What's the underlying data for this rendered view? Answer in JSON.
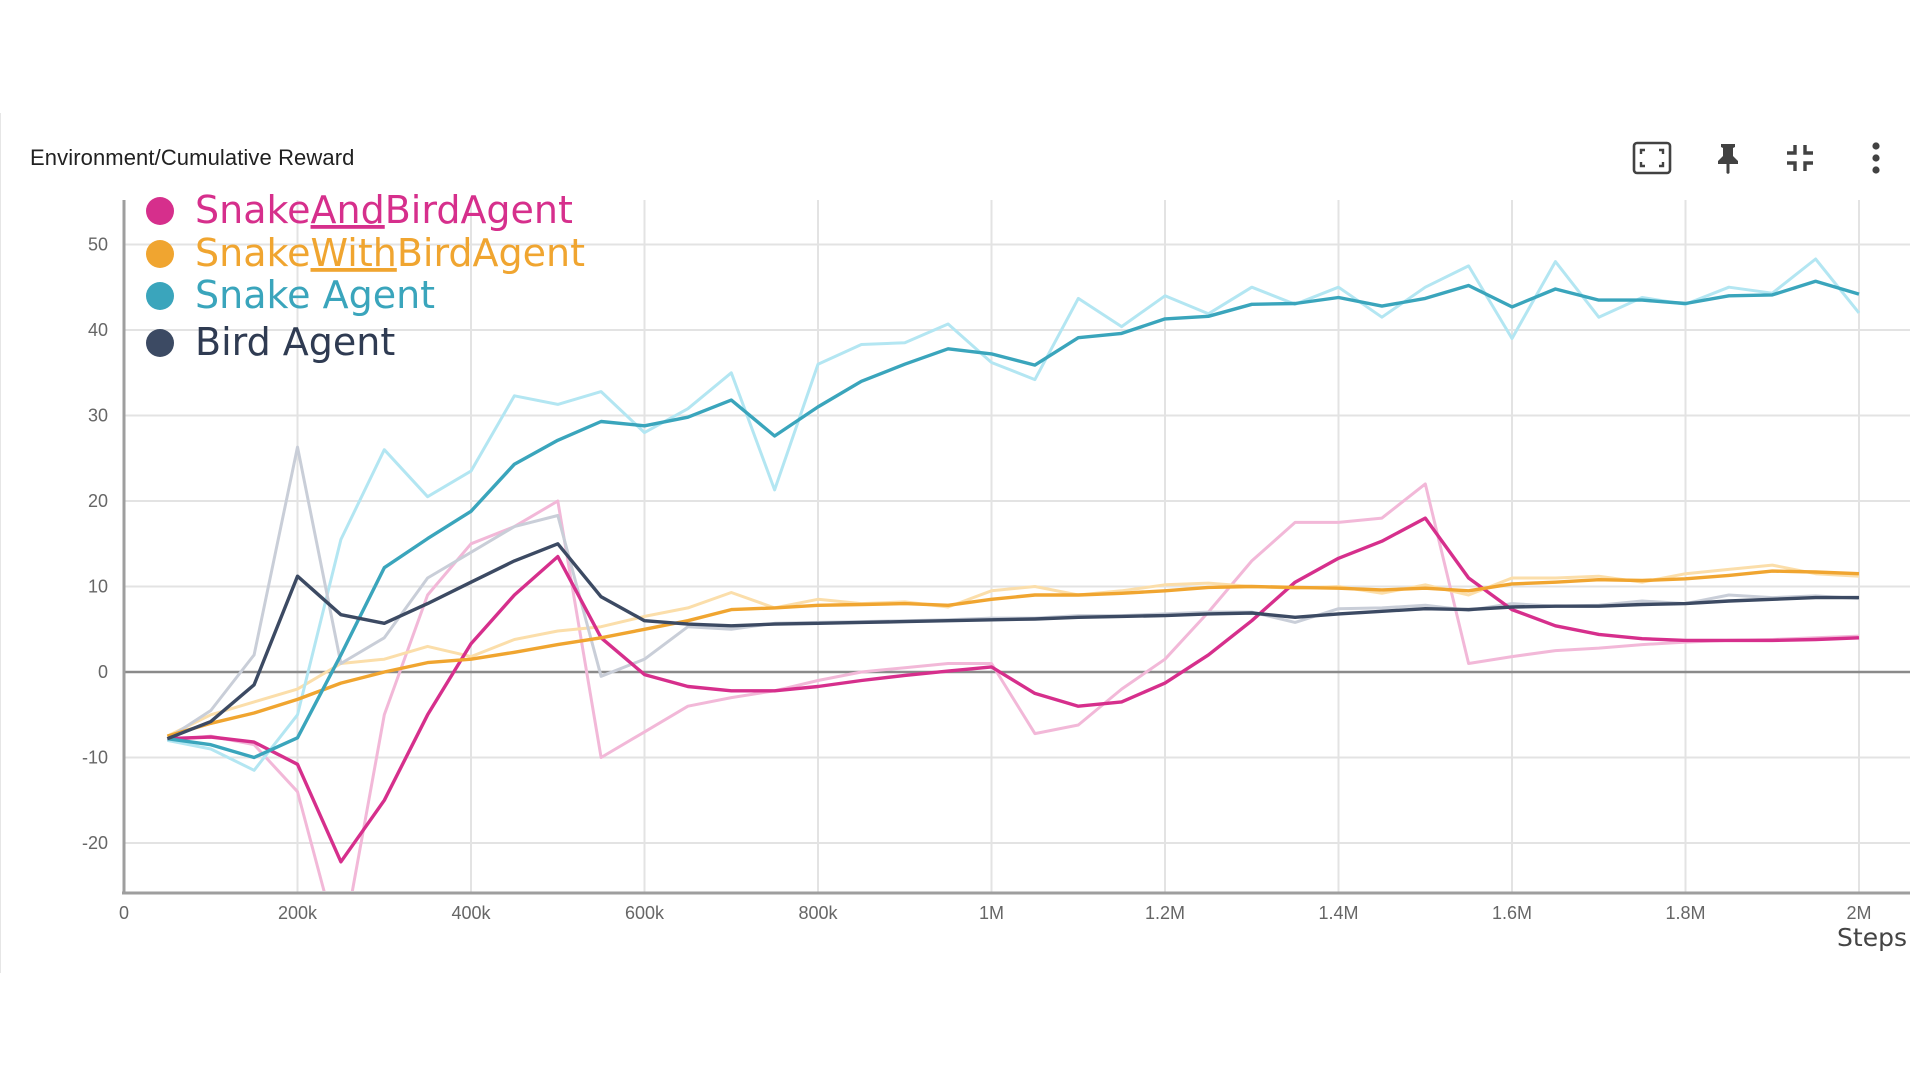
{
  "card": {
    "title": "Environment/Cumulative Reward"
  },
  "toolbar": {
    "fit_icon": "fit-to-frame-icon",
    "pin_icon": "pin-icon",
    "collapse_icon": "collapse-icon",
    "menu_icon": "more-vert-icon"
  },
  "chart_data": {
    "type": "line",
    "title": "Environment/Cumulative Reward",
    "xlabel": "Steps",
    "ylabel": "",
    "xlim": [
      0,
      2000000
    ],
    "ylim": [
      -26,
      55
    ],
    "x_ticks": [
      0,
      200000,
      400000,
      600000,
      800000,
      1000000,
      1200000,
      1400000,
      1600000,
      1800000,
      2000000
    ],
    "x_tick_labels": [
      "0",
      "200k",
      "400k",
      "600k",
      "800k",
      "1M",
      "1.2M",
      "1.4M",
      "1.6M",
      "1.8M",
      "2M"
    ],
    "y_ticks": [
      -20,
      -10,
      0,
      10,
      20,
      30,
      40,
      50
    ],
    "y_tick_labels": [
      "-20",
      "-10",
      "0",
      "10",
      "20",
      "30",
      "40",
      "50"
    ],
    "grid": true,
    "legend_position": "top-left",
    "x": [
      50000,
      100000,
      150000,
      200000,
      250000,
      300000,
      350000,
      400000,
      450000,
      500000,
      550000,
      600000,
      650000,
      700000,
      750000,
      800000,
      850000,
      900000,
      950000,
      1000000,
      1050000,
      1100000,
      1150000,
      1200000,
      1250000,
      1300000,
      1350000,
      1400000,
      1450000,
      1500000,
      1550000,
      1600000,
      1650000,
      1700000,
      1750000,
      1800000,
      1850000,
      1900000,
      1950000,
      2000000
    ],
    "series": [
      {
        "name": "SnakeAndBirdAgent",
        "underline": "And",
        "color": "#d62f8c",
        "raw_color": "#f2b8d8",
        "smoothed": [
          -7.8,
          -7.6,
          -8.2,
          -10.8,
          -22.2,
          -15.0,
          -5.0,
          3.3,
          9.0,
          13.5,
          4.0,
          -0.3,
          -1.7,
          -2.2,
          -2.2,
          -1.7,
          -1.0,
          -0.4,
          0.1,
          0.6,
          -2.5,
          -4.0,
          -3.5,
          -1.3,
          2.0,
          6.0,
          10.5,
          13.3,
          15.3,
          18.0,
          11.0,
          7.3,
          5.4,
          4.4,
          3.9,
          3.7,
          3.7,
          3.7,
          3.8,
          4.0
        ],
        "raw": [
          -8.0,
          -7.5,
          -8.5,
          -14.0,
          -33.0,
          -5.0,
          9.0,
          15.0,
          17.0,
          20.0,
          -10.0,
          -7.0,
          -4.0,
          -3.0,
          -2.2,
          -1.0,
          0.0,
          0.5,
          1.0,
          1.0,
          -7.2,
          -6.2,
          -2.0,
          1.5,
          7.0,
          13.0,
          17.5,
          17.5,
          18.0,
          22.0,
          1.0,
          1.8,
          2.5,
          2.8,
          3.2,
          3.5,
          3.7,
          3.8,
          4.0,
          4.2
        ]
      },
      {
        "name": "SnakeWithBirdAgent",
        "underline": "With",
        "color": "#f0a530",
        "raw_color": "#fbdeaa",
        "smoothed": [
          -7.5,
          -6.0,
          -4.8,
          -3.2,
          -1.3,
          0.0,
          1.1,
          1.5,
          2.3,
          3.2,
          4.0,
          5.0,
          6.0,
          7.3,
          7.5,
          7.8,
          7.9,
          8.0,
          7.8,
          8.5,
          9.0,
          9.0,
          9.2,
          9.5,
          9.9,
          10.0,
          9.9,
          9.8,
          9.6,
          9.8,
          9.5,
          10.3,
          10.5,
          10.8,
          10.7,
          10.9,
          11.3,
          11.8,
          11.7,
          11.5
        ],
        "raw": [
          -7.5,
          -5.0,
          -3.5,
          -2.0,
          1.0,
          1.5,
          3.0,
          1.8,
          3.8,
          4.8,
          5.3,
          6.5,
          7.5,
          9.3,
          7.5,
          8.5,
          8.0,
          8.2,
          7.6,
          9.5,
          10.0,
          9.0,
          9.5,
          10.2,
          10.4,
          10.0,
          9.8,
          10.0,
          9.2,
          10.2,
          9.0,
          11.0,
          11.0,
          11.2,
          10.5,
          11.5,
          12.0,
          12.5,
          11.5,
          11.2
        ]
      },
      {
        "name": "Snake Agent",
        "underline": "",
        "color": "#3aa5bc",
        "raw_color": "#b3e6f2",
        "smoothed": [
          -7.8,
          -8.5,
          -10.0,
          -7.7,
          2.0,
          12.2,
          15.6,
          18.8,
          24.3,
          27.1,
          29.3,
          28.8,
          29.8,
          31.8,
          27.6,
          31.0,
          34.0,
          36.0,
          37.8,
          37.2,
          35.9,
          39.1,
          39.6,
          41.3,
          41.6,
          43.0,
          43.1,
          43.8,
          42.8,
          43.7,
          45.2,
          42.7,
          44.8,
          43.5,
          43.5,
          43.1,
          44.0,
          44.1,
          45.7,
          44.2
        ],
        "raw": [
          -8.0,
          -9.0,
          -11.5,
          -5.0,
          15.5,
          26.0,
          20.5,
          23.5,
          32.3,
          31.3,
          32.8,
          28.0,
          30.8,
          35.0,
          21.3,
          36.0,
          38.3,
          38.5,
          40.7,
          36.2,
          34.2,
          43.7,
          40.4,
          44.0,
          41.9,
          45.0,
          43.0,
          45.0,
          41.5,
          45.0,
          47.5,
          39.0,
          48.0,
          41.5,
          43.8,
          43.0,
          45.0,
          44.3,
          48.3,
          42.0
        ]
      },
      {
        "name": "Bird Agent",
        "underline": "",
        "color": "#3c4a63",
        "raw_color": "#c9ced8",
        "smoothed": [
          -7.8,
          -5.8,
          -1.5,
          11.2,
          6.7,
          5.7,
          8.0,
          10.5,
          13.0,
          15.0,
          8.8,
          6.0,
          5.6,
          5.4,
          5.6,
          5.7,
          5.8,
          5.9,
          6.0,
          6.1,
          6.2,
          6.4,
          6.5,
          6.6,
          6.8,
          6.9,
          6.4,
          6.8,
          7.1,
          7.4,
          7.3,
          7.6,
          7.7,
          7.7,
          7.9,
          8.0,
          8.3,
          8.5,
          8.7,
          8.7
        ],
        "raw": [
          -7.8,
          -4.5,
          2.0,
          26.3,
          1.0,
          4.0,
          11.0,
          14.0,
          17.0,
          18.3,
          -0.5,
          1.5,
          5.3,
          5.0,
          5.7,
          5.8,
          5.9,
          6.0,
          6.1,
          6.3,
          6.3,
          6.6,
          6.6,
          6.8,
          7.0,
          7.0,
          5.8,
          7.4,
          7.5,
          7.8,
          7.2,
          8.0,
          7.7,
          7.8,
          8.3,
          8.0,
          9.0,
          8.7,
          8.9,
          8.6
        ]
      }
    ]
  }
}
